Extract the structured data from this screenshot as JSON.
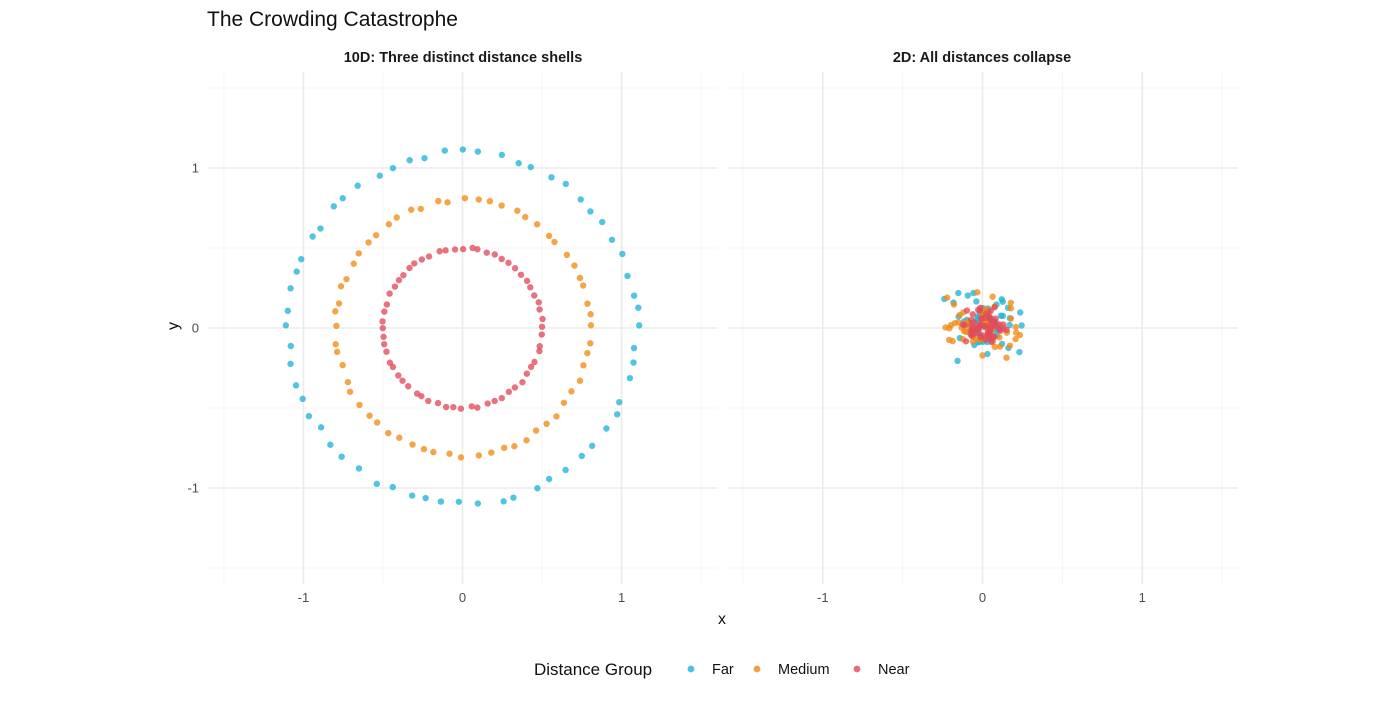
{
  "chart_data": {
    "type": "scatter",
    "title": "The Crowding Catastrophe",
    "xlabel": "x",
    "ylabel": "y",
    "xlim": [
      -1.6,
      1.6
    ],
    "ylim": [
      -1.6,
      1.6
    ],
    "grid": true,
    "x_ticks": [
      -1,
      0,
      1
    ],
    "y_ticks": [
      -1,
      0,
      1
    ],
    "legend": {
      "title": "Distance Group",
      "position": "bottom",
      "entries": [
        {
          "name": "Far",
          "color": "#1FB4D9"
        },
        {
          "name": "Medium",
          "color": "#F28A14"
        },
        {
          "name": "Near",
          "color": "#E24A5A"
        }
      ]
    },
    "panels": [
      {
        "title": "10D: Three distinct distance shells",
        "series": [
          {
            "name": "Far",
            "color": "#1FB4D9",
            "shell_radius": 1.1,
            "n_points": 60
          },
          {
            "name": "Medium",
            "color": "#F28A14",
            "shell_radius": 0.8,
            "n_points": 60
          },
          {
            "name": "Near",
            "color": "#E24A5A",
            "shell_radius": 0.5,
            "n_points": 60
          }
        ]
      },
      {
        "title": "2D: All distances collapse",
        "series": [
          {
            "name": "Far",
            "color": "#1FB4D9",
            "center": [
              0,
              0
            ],
            "spread": 0.12,
            "extent": 0.3,
            "n_points": 60
          },
          {
            "name": "Medium",
            "color": "#F28A14",
            "center": [
              0,
              0
            ],
            "spread": 0.1,
            "extent": 0.33,
            "n_points": 60
          },
          {
            "name": "Near",
            "color": "#E24A5A",
            "center": [
              0,
              0
            ],
            "spread": 0.07,
            "extent": 0.2,
            "n_points": 60
          }
        ]
      }
    ]
  }
}
